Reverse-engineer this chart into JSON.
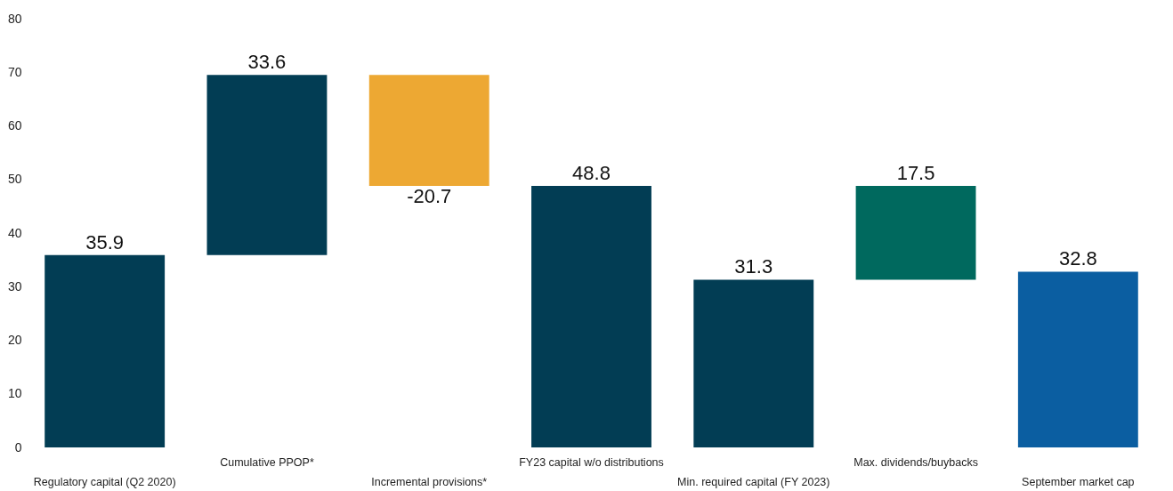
{
  "chart_data": {
    "type": "bar",
    "categories": [
      "Regulatory capital (Q2 2020)",
      "Cumulative PPOP*",
      "Incremental provisions*",
      "FY23 capital w/o distributions",
      "Min. required capital (FY 2023)",
      "Max. dividends/buybacks",
      "September market cap"
    ],
    "values": [
      35.9,
      33.6,
      -20.7,
      48.8,
      31.3,
      17.5,
      32.8
    ],
    "base": [
      0,
      35.9,
      69.5,
      0,
      0,
      31.3,
      0
    ],
    "colors": [
      "#023d54",
      "#023d54",
      "#eda833",
      "#023d54",
      "#023d54",
      "#00695e",
      "#0b5ea1"
    ],
    "ylim": [
      0,
      80
    ],
    "yticks": [
      0,
      10,
      20,
      30,
      40,
      50,
      60,
      70,
      80
    ],
    "grid": false,
    "data_labels": true
  }
}
